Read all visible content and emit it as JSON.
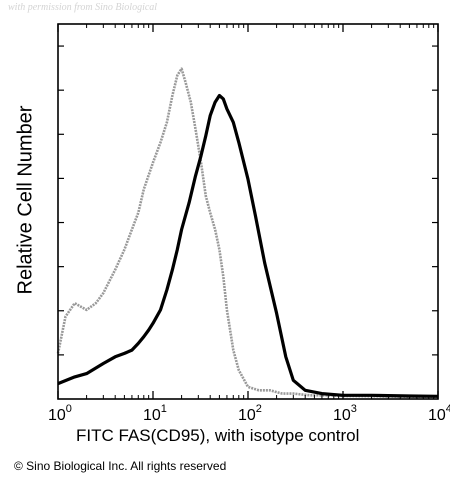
{
  "watermark": "with permission from Sino Biological",
  "copyright": "© Sino Biological Inc. All rights reserved",
  "chart_data": {
    "type": "line",
    "xlabel": "FITC FAS(CD95), with isotype control",
    "ylabel": "Relative Cell Number",
    "xscale": "log",
    "xlim": [
      1,
      10000
    ],
    "ylim": [
      0,
      100
    ],
    "x_tick_values": [
      1,
      10,
      100,
      1000,
      10000
    ],
    "x_tick_labels": [
      {
        "base": "10",
        "exp": "0"
      },
      {
        "base": "10",
        "exp": "1"
      },
      {
        "base": "10",
        "exp": "2"
      },
      {
        "base": "10",
        "exp": "3"
      },
      {
        "base": "10",
        "exp": "4"
      }
    ],
    "y_tick_labels": "none",
    "grid": false,
    "series": [
      {
        "color": "#9a9a9a",
        "x": [
          1,
          1.2,
          1.5,
          2,
          2.5,
          3,
          4,
          5,
          6,
          7,
          8,
          10,
          12,
          14,
          16,
          18,
          20,
          22,
          25,
          28,
          32,
          36,
          40,
          45,
          50,
          55,
          60,
          70,
          80,
          100,
          130,
          170,
          230,
          300,
          450,
          700,
          1000,
          2000,
          5000,
          10000
        ],
        "y": [
          13,
          24,
          28,
          26,
          28,
          31,
          38,
          44,
          50,
          55,
          62,
          70,
          76,
          82,
          90,
          96,
          98,
          94,
          88,
          80,
          70,
          60,
          55,
          50,
          44,
          36,
          26,
          14,
          8,
          3,
          2,
          2,
          1,
          1,
          0.5,
          0.5,
          0.3,
          0.2,
          0.1,
          0.1
        ]
      },
      {
        "color": "#000000",
        "x": [
          1,
          1.5,
          2,
          3,
          4,
          5,
          6,
          7,
          8,
          9,
          10,
          12,
          14,
          16,
          18,
          20,
          24,
          28,
          32,
          36,
          40,
          45,
          50,
          55,
          60,
          70,
          80,
          100,
          120,
          150,
          200,
          250,
          300,
          400,
          600,
          1000,
          2000,
          5000,
          10000
        ],
        "y": [
          4,
          6,
          7,
          10,
          12,
          13,
          14,
          16,
          18,
          20,
          22,
          26,
          32,
          38,
          44,
          50,
          58,
          66,
          72,
          78,
          84,
          88,
          90,
          89,
          86,
          82,
          76,
          65,
          54,
          40,
          25,
          12,
          5,
          2,
          1,
          0.5,
          0.5,
          0.3,
          0.2
        ]
      }
    ]
  }
}
